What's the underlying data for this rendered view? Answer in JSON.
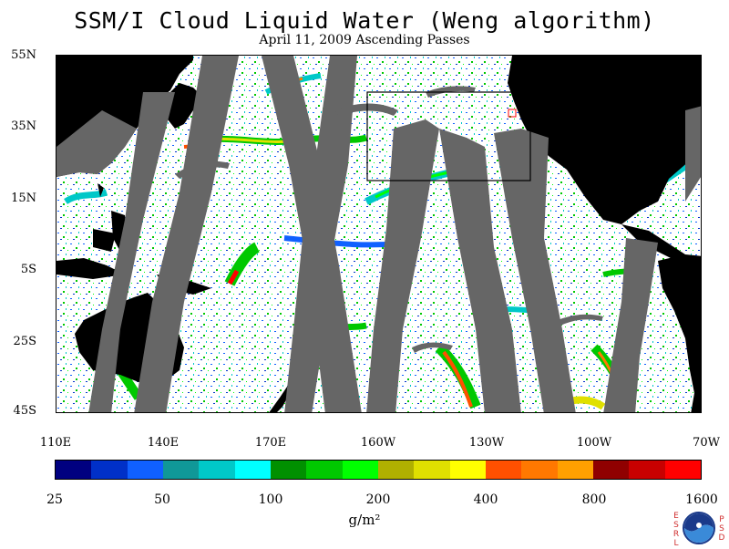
{
  "title": "SSM/I Cloud Liquid Water (Weng algorithm)",
  "subtitle": "April 11, 2009  Ascending Passes",
  "map": {
    "lat_labels": [
      "55N",
      "35N",
      "15N",
      "5S",
      "25S",
      "45S"
    ],
    "lon_labels": [
      "110E",
      "140E",
      "170E",
      "160W",
      "130W",
      "100W",
      "70W"
    ],
    "colors": {
      "ocean": "#ffffff",
      "land": "#000000",
      "no_data": "#666666"
    }
  },
  "colorbar": {
    "colors": [
      "#000080",
      "#0030c8",
      "#1060ff",
      "#109898",
      "#00c8c8",
      "#00ffff",
      "#009000",
      "#00c800",
      "#00ff00",
      "#b0b000",
      "#e0e000",
      "#ffff00",
      "#ff5000",
      "#ff7800",
      "#ffa000",
      "#900000",
      "#c80000",
      "#ff0000"
    ],
    "tick_labels": [
      "25",
      "50",
      "100",
      "200",
      "400",
      "800",
      "1600"
    ],
    "units": "g/m²"
  },
  "logo": {
    "left_letters": "ESRL",
    "right_letters": "PSD",
    "emblem": "NOAA"
  }
}
